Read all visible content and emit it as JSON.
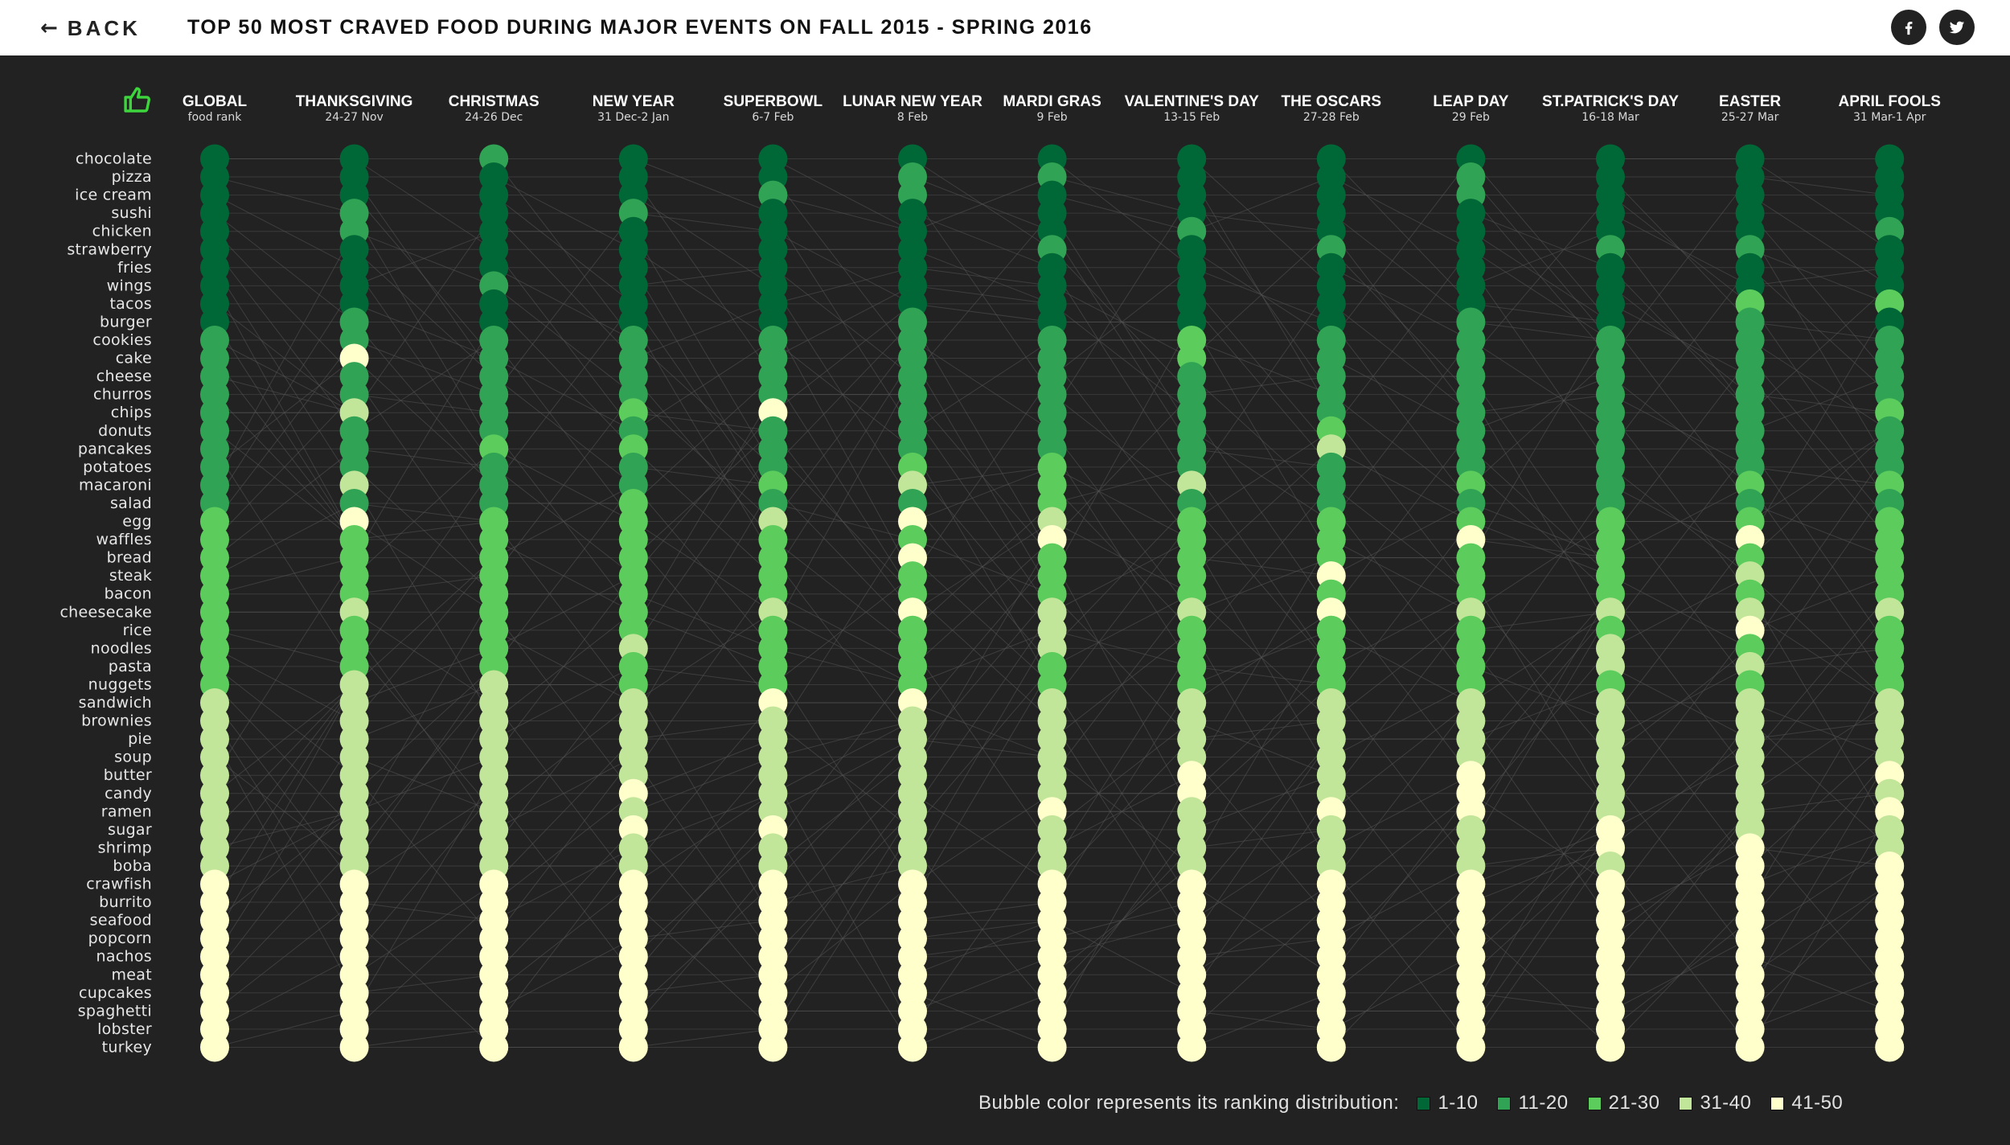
{
  "header": {
    "back_label": "BACK",
    "title": "TOP 50 MOST CRAVED FOOD DURING MAJOR EVENTS ON FALL 2015 - SPRING 2016",
    "facebook_icon": "facebook-icon",
    "twitter_icon": "twitter-icon"
  },
  "legend": {
    "title": "Bubble color represents its ranking distribution:",
    "items": [
      {
        "label": "1-10",
        "color": "#006837"
      },
      {
        "label": "11-20",
        "color": "#31a354"
      },
      {
        "label": "21-30",
        "color": "#5ccc5c"
      },
      {
        "label": "31-40",
        "color": "#c2e699"
      },
      {
        "label": "41-50",
        "color": "#ffffcc"
      }
    ]
  },
  "chart_data": {
    "type": "bump",
    "title": "TOP 50 MOST CRAVED FOOD DURING MAJOR EVENTS ON FALL 2015 - SPRING 2016",
    "thumb_icon": "thumbs-up-icon",
    "foods": [
      "chocolate",
      "pizza",
      "ice cream",
      "sushi",
      "chicken",
      "strawberry",
      "fries",
      "wings",
      "tacos",
      "burger",
      "cookies",
      "cake",
      "cheese",
      "churros",
      "chips",
      "donuts",
      "pancakes",
      "potatoes",
      "macaroni",
      "salad",
      "egg",
      "waffles",
      "bread",
      "steak",
      "bacon",
      "cheesecake",
      "rice",
      "noodles",
      "pasta",
      "nuggets",
      "sandwich",
      "brownies",
      "pie",
      "soup",
      "butter",
      "candy",
      "ramen",
      "sugar",
      "shrimp",
      "boba",
      "crawfish",
      "burrito",
      "seafood",
      "popcorn",
      "nachos",
      "meat",
      "cupcakes",
      "spaghetti",
      "lobster",
      "turkey"
    ],
    "events": [
      {
        "name": "GLOBAL",
        "date": "food rank"
      },
      {
        "name": "THANKSGIVING",
        "date": "24-27 Nov"
      },
      {
        "name": "CHRISTMAS",
        "date": "24-26 Dec"
      },
      {
        "name": "NEW YEAR",
        "date": "31 Dec-2 Jan"
      },
      {
        "name": "SUPERBOWL",
        "date": "6-7 Feb"
      },
      {
        "name": "LUNAR NEW YEAR",
        "date": "8 Feb"
      },
      {
        "name": "MARDI GRAS",
        "date": "9 Feb"
      },
      {
        "name": "VALENTINE'S DAY",
        "date": "13-15 Feb"
      },
      {
        "name": "THE OSCARS",
        "date": "27-28 Feb"
      },
      {
        "name": "LEAP DAY",
        "date": "29 Feb"
      },
      {
        "name": "ST.PATRICK'S DAY",
        "date": "16-18 Mar"
      },
      {
        "name": "EASTER",
        "date": "25-27 Mar"
      },
      {
        "name": "APRIL FOOLS",
        "date": "31 Mar-1 Apr"
      }
    ],
    "color_bins": [
      {
        "range": [
          1,
          10
        ],
        "color": "#006837"
      },
      {
        "range": [
          11,
          20
        ],
        "color": "#31a354"
      },
      {
        "range": [
          21,
          30
        ],
        "color": "#5ccc5c"
      },
      {
        "range": [
          31,
          40
        ],
        "color": "#c2e699"
      },
      {
        "range": [
          41,
          50
        ],
        "color": "#ffffcc"
      }
    ],
    "bubble_ranks": [
      [
        1,
        2,
        3,
        4,
        5,
        6,
        7,
        8,
        9,
        10,
        11,
        12,
        13,
        14,
        15,
        16,
        17,
        18,
        19,
        20,
        21,
        22,
        23,
        24,
        25,
        26,
        27,
        28,
        29,
        30,
        31,
        32,
        33,
        34,
        35,
        36,
        37,
        38,
        39,
        40,
        41,
        42,
        43,
        44,
        45,
        46,
        47,
        48,
        49,
        50
      ],
      [
        1,
        2,
        3,
        14,
        15,
        6,
        7,
        8,
        9,
        20,
        11,
        45,
        13,
        14,
        35,
        16,
        17,
        18,
        37,
        20,
        45,
        22,
        23,
        24,
        25,
        36,
        27,
        28,
        29,
        36,
        31,
        32,
        33,
        34,
        35,
        36,
        37,
        38,
        39,
        40,
        41,
        42,
        43,
        44,
        45,
        46,
        47,
        48,
        49,
        50
      ],
      [
        15,
        2,
        3,
        4,
        5,
        6,
        7,
        18,
        9,
        10,
        11,
        12,
        13,
        14,
        15,
        16,
        27,
        18,
        19,
        20,
        27,
        22,
        23,
        24,
        25,
        26,
        27,
        28,
        29,
        36,
        31,
        32,
        33,
        34,
        35,
        36,
        37,
        38,
        39,
        40,
        41,
        42,
        43,
        44,
        45,
        46,
        47,
        48,
        49,
        50
      ],
      [
        1,
        2,
        3,
        14,
        5,
        6,
        7,
        8,
        9,
        10,
        11,
        12,
        13,
        14,
        25,
        16,
        27,
        18,
        19,
        28,
        21,
        22,
        23,
        24,
        25,
        26,
        27,
        38,
        29,
        30,
        31,
        32,
        33,
        34,
        35,
        46,
        37,
        48,
        39,
        40,
        41,
        42,
        43,
        44,
        45,
        46,
        47,
        48,
        49,
        50
      ],
      [
        1,
        2,
        13,
        4,
        5,
        6,
        7,
        8,
        9,
        10,
        11,
        12,
        13,
        14,
        47,
        16,
        17,
        18,
        29,
        20,
        37,
        22,
        23,
        24,
        25,
        36,
        27,
        28,
        29,
        30,
        45,
        32,
        33,
        34,
        35,
        36,
        37,
        48,
        39,
        40,
        41,
        42,
        43,
        44,
        45,
        46,
        47,
        48,
        49,
        50
      ],
      [
        1,
        12,
        13,
        4,
        5,
        6,
        7,
        8,
        9,
        20,
        11,
        12,
        13,
        14,
        15,
        16,
        17,
        28,
        39,
        20,
        45,
        22,
        45,
        24,
        25,
        46,
        27,
        28,
        29,
        30,
        45,
        32,
        33,
        34,
        35,
        36,
        37,
        38,
        39,
        40,
        41,
        42,
        43,
        44,
        45,
        46,
        47,
        48,
        49,
        50
      ],
      [
        1,
        12,
        3,
        4,
        5,
        16,
        7,
        8,
        9,
        10,
        11,
        12,
        13,
        14,
        15,
        16,
        17,
        28,
        29,
        30,
        31,
        47,
        23,
        24,
        25,
        36,
        37,
        38,
        29,
        30,
        31,
        38,
        33,
        34,
        35,
        36,
        47,
        38,
        39,
        40,
        41,
        42,
        43,
        44,
        45,
        46,
        47,
        48,
        49,
        50
      ],
      [
        1,
        2,
        3,
        4,
        15,
        6,
        7,
        8,
        9,
        10,
        21,
        27,
        13,
        14,
        15,
        16,
        17,
        18,
        37,
        20,
        21,
        22,
        23,
        24,
        25,
        36,
        27,
        28,
        29,
        30,
        31,
        32,
        33,
        34,
        47,
        45,
        37,
        38,
        39,
        40,
        41,
        42,
        43,
        44,
        45,
        46,
        47,
        48,
        49,
        50
      ],
      [
        1,
        2,
        3,
        4,
        5,
        16,
        7,
        8,
        9,
        10,
        11,
        12,
        13,
        14,
        15,
        26,
        37,
        18,
        19,
        20,
        21,
        22,
        23,
        48,
        25,
        48,
        27,
        28,
        29,
        30,
        31,
        32,
        33,
        34,
        35,
        36,
        47,
        38,
        39,
        40,
        41,
        42,
        43,
        44,
        45,
        46,
        47,
        48,
        49,
        50
      ],
      [
        1,
        12,
        13,
        4,
        5,
        6,
        7,
        8,
        9,
        20,
        11,
        12,
        13,
        14,
        15,
        16,
        17,
        18,
        29,
        20,
        21,
        47,
        23,
        24,
        25,
        36,
        27,
        28,
        29,
        30,
        31,
        32,
        33,
        34,
        47,
        46,
        47,
        38,
        39,
        40,
        41,
        42,
        43,
        44,
        45,
        46,
        47,
        48,
        49,
        50
      ],
      [
        1,
        2,
        3,
        4,
        5,
        16,
        7,
        8,
        9,
        10,
        11,
        12,
        13,
        14,
        15,
        16,
        17,
        18,
        19,
        20,
        21,
        22,
        23,
        24,
        25,
        36,
        27,
        38,
        39,
        30,
        31,
        32,
        33,
        34,
        35,
        36,
        37,
        48,
        49,
        40,
        41,
        42,
        43,
        44,
        45,
        46,
        47,
        48,
        49,
        50
      ],
      [
        1,
        2,
        3,
        4,
        5,
        16,
        7,
        8,
        29,
        20,
        11,
        12,
        13,
        14,
        15,
        16,
        17,
        18,
        29,
        20,
        21,
        47,
        23,
        34,
        25,
        36,
        47,
        28,
        39,
        30,
        31,
        32,
        33,
        34,
        35,
        36,
        37,
        38,
        49,
        50,
        41,
        42,
        43,
        44,
        45,
        46,
        47,
        48,
        49,
        50
      ],
      [
        1,
        2,
        3,
        4,
        15,
        6,
        7,
        8,
        29,
        10,
        11,
        12,
        13,
        14,
        25,
        16,
        17,
        18,
        29,
        20,
        21,
        22,
        23,
        24,
        25,
        36,
        27,
        28,
        29,
        30,
        31,
        32,
        33,
        34,
        47,
        36,
        47,
        38,
        39,
        48,
        41,
        42,
        43,
        44,
        45,
        46,
        47,
        48,
        49,
        50
      ]
    ]
  }
}
